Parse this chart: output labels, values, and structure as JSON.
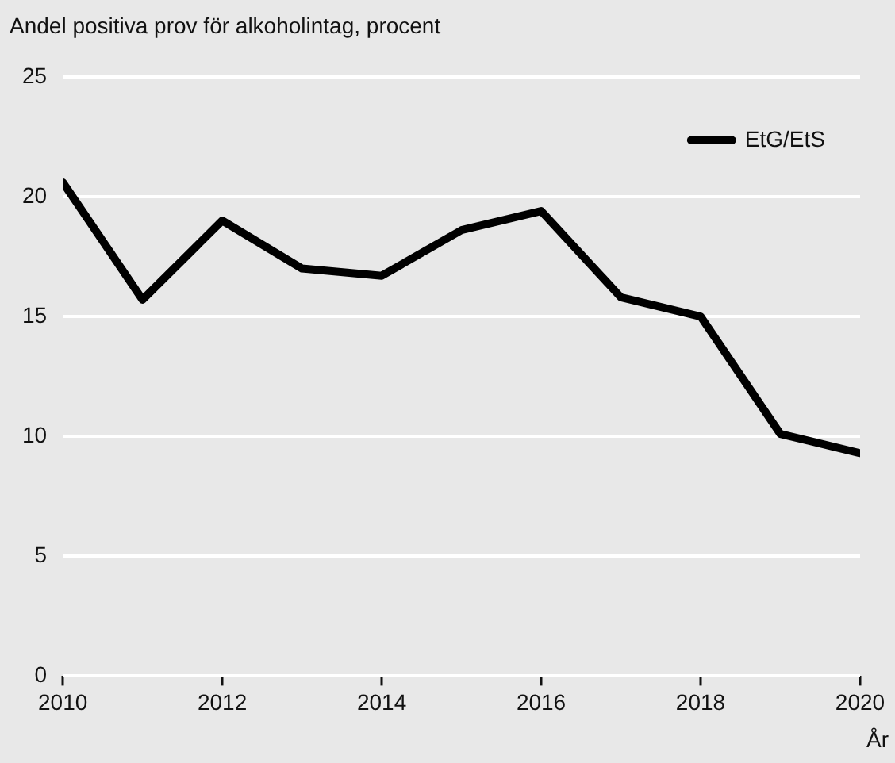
{
  "chart_data": {
    "type": "line",
    "ylabel": "Andel positiva prov för alkoholintag, procent",
    "xlabel": "År",
    "x": [
      2010,
      2011,
      2012,
      2013,
      2014,
      2015,
      2016,
      2017,
      2018,
      2019,
      2020
    ],
    "series": [
      {
        "name": "EtG/EtS",
        "color": "#000000",
        "values": [
          20.6,
          15.7,
          19.0,
          17.0,
          16.7,
          18.6,
          19.4,
          15.8,
          15.0,
          10.1,
          9.3
        ]
      }
    ],
    "xlim": [
      2010,
      2020
    ],
    "xticks": [
      2010,
      2012,
      2014,
      2016,
      2018,
      2020
    ],
    "ylim": [
      0,
      25
    ],
    "yticks": [
      0,
      5,
      10,
      15,
      20,
      25
    ],
    "grid": "y",
    "legend": "top right",
    "marker": "none",
    "line_style": "solid"
  }
}
